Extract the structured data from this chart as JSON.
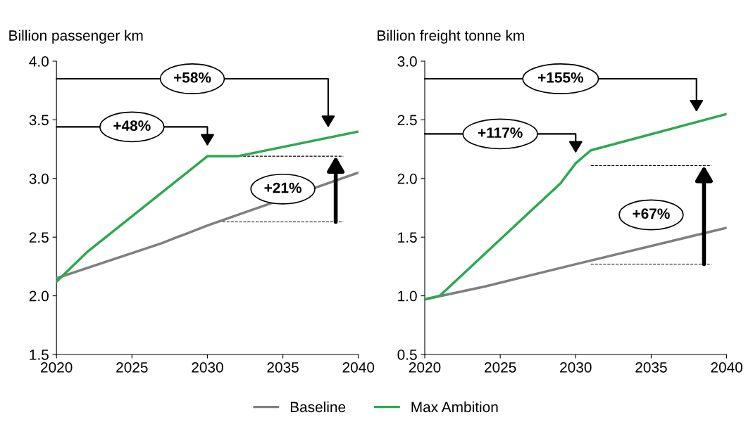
{
  "chart_data": [
    {
      "type": "line",
      "ylabel": "Billion passenger km",
      "xlim": [
        2020,
        2040
      ],
      "xticks": [
        2020,
        2025,
        2030,
        2035,
        2040
      ],
      "ylim": [
        1.5,
        4.0
      ],
      "yticks": [
        {
          "value": 1.5,
          "label": "1.5"
        },
        {
          "value": 2.0,
          "label": "2.0"
        },
        {
          "value": 2.5,
          "label": "2.5"
        },
        {
          "value": 3.0,
          "label": "3.0"
        },
        {
          "value": 3.5,
          "label": "3.5"
        },
        {
          "value": 4.0,
          "label": "4.0"
        }
      ],
      "grid": false,
      "legend": "bottom",
      "line_style": "solid",
      "marker": "none",
      "series": [
        {
          "name": "Baseline",
          "color": "#7f7f7f",
          "x": [
            2020,
            2027,
            2030,
            2040
          ],
          "values": [
            2.15,
            2.45,
            2.6,
            3.05
          ]
        },
        {
          "name": "Max Ambition",
          "color": "#2ca94f",
          "x": [
            2020,
            2022,
            2030,
            2032,
            2040
          ],
          "values": [
            2.12,
            2.37,
            3.19,
            3.19,
            3.4
          ]
        }
      ],
      "ref_lines": [
        {
          "axis": "y",
          "value": 3.19,
          "line_style": "dashed",
          "color": "#000000"
        },
        {
          "axis": "y",
          "value": 2.63,
          "line_style": "dashed",
          "color": "#000000"
        }
      ],
      "annotations": [
        "+58%",
        "+48%",
        "+21%"
      ]
    },
    {
      "type": "line",
      "ylabel": "Billion freight tonne km",
      "xlim": [
        2020,
        2040
      ],
      "xticks": [
        2020,
        2025,
        2030,
        2035,
        2040
      ],
      "ylim": [
        0.5,
        3.0
      ],
      "yticks": [
        {
          "value": 0.5,
          "label": "0.5"
        },
        {
          "value": 1.0,
          "label": "1.0"
        },
        {
          "value": 1.5,
          "label": "1.5"
        },
        {
          "value": 2.0,
          "label": "2.0"
        },
        {
          "value": 2.5,
          "label": "2.5"
        },
        {
          "value": 3.0,
          "label": "3.0"
        }
      ],
      "grid": false,
      "line_style": "solid",
      "marker": "none",
      "series": [
        {
          "color": "#7f7f7f",
          "x": [
            2020,
            2024,
            2030,
            2040
          ],
          "values": [
            0.97,
            1.08,
            1.27,
            1.58
          ]
        },
        {
          "color": "#2ca94f",
          "x": [
            2020,
            2021,
            2029,
            2030,
            2031,
            2040
          ],
          "values": [
            0.97,
            1.0,
            1.96,
            2.13,
            2.24,
            2.55
          ]
        }
      ],
      "ref_lines": [
        {
          "axis": "y",
          "value": 2.11,
          "line_style": "dashed",
          "color": "#000000"
        },
        {
          "axis": "y",
          "value": 1.27,
          "line_style": "dashed",
          "color": "#000000"
        }
      ],
      "annotations": [
        "+155%",
        "+117%",
        "+67%"
      ]
    }
  ]
}
